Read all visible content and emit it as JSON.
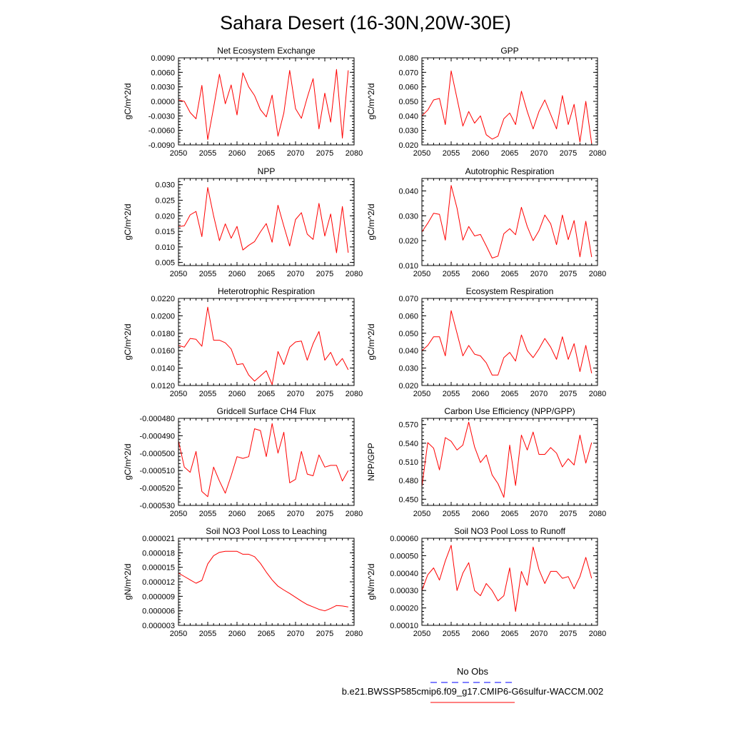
{
  "page": {
    "title": "Sahara Desert (16-30N,20W-30E)"
  },
  "legend": {
    "entries": [
      {
        "label": "No Obs",
        "color": "#0000ff",
        "style": "dashed"
      },
      {
        "label": "b.e21.BWSSP585cmip6.f09_g17.CMIP6-G6sulfur-WACCM.002",
        "color": "#ff0000",
        "style": "solid"
      }
    ]
  },
  "colors": {
    "series": "#ff0000",
    "axis": "#000000"
  },
  "chart_data": [
    {
      "type": "line",
      "title": "Net Ecosystem Exchange",
      "ylabel": "gC/m^2/d",
      "xlim": [
        2050,
        2080
      ],
      "ylim": [
        -0.009,
        0.009
      ],
      "xticks": [
        "2050",
        "2055",
        "2060",
        "2065",
        "2070",
        "2075",
        "2080"
      ],
      "yticks": [
        "-0.0090",
        "-0.0060",
        "-0.0030",
        "0.0000",
        "0.0030",
        "0.0060",
        "0.0090"
      ],
      "x": [
        2050,
        2051,
        2052,
        2053,
        2054,
        2055,
        2056,
        2057,
        2058,
        2059,
        2060,
        2061,
        2062,
        2063,
        2064,
        2065,
        2066,
        2067,
        2068,
        2069,
        2070,
        2071,
        2072,
        2073,
        2074,
        2075,
        2076,
        2077,
        2078,
        2079
      ],
      "values": [
        0.0003,
        0.0,
        -0.0023,
        -0.0036,
        0.0033,
        -0.0079,
        -0.0013,
        0.0056,
        -0.0005,
        0.0034,
        -0.0028,
        0.0059,
        0.003,
        0.0012,
        -0.0017,
        -0.0032,
        0.0013,
        -0.0072,
        -0.0024,
        0.0064,
        -0.0015,
        -0.0035,
        0.0008,
        0.0047,
        -0.0057,
        0.0017,
        -0.0043,
        0.0066,
        -0.0076,
        0.0064
      ]
    },
    {
      "type": "line",
      "title": "GPP",
      "ylabel": "gC/m^2/d",
      "xlim": [
        2050,
        2080
      ],
      "ylim": [
        0.02,
        0.08
      ],
      "xticks": [
        "2050",
        "2055",
        "2060",
        "2065",
        "2070",
        "2075",
        "2080"
      ],
      "yticks": [
        "0.020",
        "0.030",
        "0.040",
        "0.050",
        "0.060",
        "0.070",
        "0.080"
      ],
      "x": [
        2050,
        2051,
        2052,
        2053,
        2054,
        2055,
        2056,
        2057,
        2058,
        2059,
        2060,
        2061,
        2062,
        2063,
        2064,
        2065,
        2066,
        2067,
        2068,
        2069,
        2070,
        2071,
        2072,
        2073,
        2074,
        2075,
        2076,
        2077,
        2078,
        2079
      ],
      "values": [
        0.04,
        0.044,
        0.051,
        0.052,
        0.034,
        0.071,
        0.052,
        0.033,
        0.043,
        0.035,
        0.04,
        0.027,
        0.024,
        0.026,
        0.038,
        0.042,
        0.034,
        0.057,
        0.043,
        0.031,
        0.043,
        0.051,
        0.041,
        0.031,
        0.054,
        0.034,
        0.048,
        0.022,
        0.05,
        0.021
      ]
    },
    {
      "type": "line",
      "title": "NPP",
      "ylabel": "gC/m^2/d",
      "xlim": [
        2050,
        2080
      ],
      "ylim": [
        0.004,
        0.032
      ],
      "xticks": [
        "2050",
        "2055",
        "2060",
        "2065",
        "2070",
        "2075",
        "2080"
      ],
      "yticks": [
        "0.005",
        "0.010",
        "0.015",
        "0.020",
        "0.025",
        "0.030"
      ],
      "x": [
        2050,
        2051,
        2052,
        2053,
        2054,
        2055,
        2056,
        2057,
        2058,
        2059,
        2060,
        2061,
        2062,
        2063,
        2064,
        2065,
        2066,
        2067,
        2068,
        2069,
        2070,
        2071,
        2072,
        2073,
        2074,
        2075,
        2076,
        2077,
        2078,
        2079
      ],
      "values": [
        0.0165,
        0.0168,
        0.0203,
        0.0214,
        0.0133,
        0.0291,
        0.02,
        0.012,
        0.0174,
        0.0128,
        0.0166,
        0.009,
        0.0105,
        0.0117,
        0.0148,
        0.0175,
        0.0115,
        0.0234,
        0.0167,
        0.0103,
        0.0188,
        0.021,
        0.0141,
        0.0124,
        0.024,
        0.0135,
        0.0206,
        0.0081,
        0.023,
        0.0081
      ]
    },
    {
      "type": "line",
      "title": "Autotrophic Respiration",
      "ylabel": "gC/m^2/d",
      "xlim": [
        2050,
        2080
      ],
      "ylim": [
        0.01,
        0.045
      ],
      "xticks": [
        "2050",
        "2055",
        "2060",
        "2065",
        "2070",
        "2075",
        "2080"
      ],
      "yticks": [
        "0.010",
        "0.020",
        "0.030",
        "0.040"
      ],
      "x": [
        2050,
        2051,
        2052,
        2053,
        2054,
        2055,
        2056,
        2057,
        2058,
        2059,
        2060,
        2061,
        2062,
        2063,
        2064,
        2065,
        2066,
        2067,
        2068,
        2069,
        2070,
        2071,
        2072,
        2073,
        2074,
        2075,
        2076,
        2077,
        2078,
        2079
      ],
      "values": [
        0.0235,
        0.027,
        0.031,
        0.0306,
        0.0202,
        0.0422,
        0.0331,
        0.0202,
        0.0257,
        0.0219,
        0.0225,
        0.0179,
        0.013,
        0.0138,
        0.0228,
        0.0248,
        0.0224,
        0.0334,
        0.0257,
        0.02,
        0.024,
        0.0303,
        0.0268,
        0.0184,
        0.0303,
        0.0204,
        0.0281,
        0.0135,
        0.0278,
        0.0134
      ]
    },
    {
      "type": "line",
      "title": "Heterotrophic Respiration",
      "ylabel": "gC/m^2/d",
      "xlim": [
        2050,
        2080
      ],
      "ylim": [
        0.012,
        0.022
      ],
      "xticks": [
        "2050",
        "2055",
        "2060",
        "2065",
        "2070",
        "2075",
        "2080"
      ],
      "yticks": [
        "0.0120",
        "0.0140",
        "0.0160",
        "0.0180",
        "0.0200",
        "0.0220"
      ],
      "x": [
        2050,
        2051,
        2052,
        2053,
        2054,
        2055,
        2056,
        2057,
        2058,
        2059,
        2060,
        2061,
        2062,
        2063,
        2064,
        2065,
        2066,
        2067,
        2068,
        2069,
        2070,
        2071,
        2072,
        2073,
        2074,
        2075,
        2076,
        2077,
        2078,
        2079
      ],
      "values": [
        0.0166,
        0.0164,
        0.0174,
        0.0173,
        0.0165,
        0.021,
        0.0172,
        0.0172,
        0.0169,
        0.0162,
        0.0144,
        0.0145,
        0.0132,
        0.0125,
        0.0131,
        0.0137,
        0.0121,
        0.0159,
        0.0144,
        0.0164,
        0.017,
        0.0171,
        0.0149,
        0.0168,
        0.0182,
        0.0149,
        0.0158,
        0.0143,
        0.0151,
        0.0138
      ]
    },
    {
      "type": "line",
      "title": "Ecosystem Respiration",
      "ylabel": "gC/m^2/d",
      "xlim": [
        2050,
        2080
      ],
      "ylim": [
        0.02,
        0.07
      ],
      "xticks": [
        "2050",
        "2055",
        "2060",
        "2065",
        "2070",
        "2075",
        "2080"
      ],
      "yticks": [
        "0.020",
        "0.030",
        "0.040",
        "0.050",
        "0.060",
        "0.070"
      ],
      "x": [
        2050,
        2051,
        2052,
        2053,
        2054,
        2055,
        2056,
        2057,
        2058,
        2059,
        2060,
        2061,
        2062,
        2063,
        2064,
        2065,
        2066,
        2067,
        2068,
        2069,
        2070,
        2071,
        2072,
        2073,
        2074,
        2075,
        2076,
        2077,
        2078,
        2079
      ],
      "values": [
        0.04,
        0.043,
        0.048,
        0.048,
        0.037,
        0.063,
        0.05,
        0.037,
        0.043,
        0.038,
        0.037,
        0.033,
        0.026,
        0.026,
        0.036,
        0.039,
        0.034,
        0.049,
        0.04,
        0.036,
        0.041,
        0.047,
        0.042,
        0.035,
        0.048,
        0.035,
        0.044,
        0.028,
        0.043,
        0.027
      ]
    },
    {
      "type": "line",
      "title": "Gridcell Surface CH4 Flux",
      "ylabel": "gC/m^2/d",
      "xlim": [
        2050,
        2080
      ],
      "ylim": [
        -0.00053,
        -0.00048
      ],
      "xticks": [
        "2050",
        "2055",
        "2060",
        "2065",
        "2070",
        "2075",
        "2080"
      ],
      "yticks": [
        "-0.000530",
        "-0.000520",
        "-0.000510",
        "-0.000500",
        "-0.000490",
        "-0.000480"
      ],
      "x": [
        2050,
        2051,
        2052,
        2053,
        2054,
        2055,
        2056,
        2057,
        2058,
        2059,
        2060,
        2061,
        2062,
        2063,
        2064,
        2065,
        2066,
        2067,
        2068,
        2069,
        2070,
        2071,
        2072,
        2073,
        2074,
        2075,
        2076,
        2077,
        2078,
        2079
      ],
      "values": [
        -0.000493,
        -0.000508,
        -0.000511,
        -0.000499,
        -0.000522,
        -0.000525,
        -0.000508,
        -0.000516,
        -0.000523,
        -0.000513,
        -0.000502,
        -0.000503,
        -0.000502,
        -0.000486,
        -0.000487,
        -0.000502,
        -0.000483,
        -0.0005,
        -0.000488,
        -0.000517,
        -0.000515,
        -0.000499,
        -0.000512,
        -0.000513,
        -0.000501,
        -0.000508,
        -0.000507,
        -0.000507,
        -0.000516,
        -0.00051
      ]
    },
    {
      "type": "line",
      "title": "Carbon Use Efficiency (NPP/GPP)",
      "ylabel": "NPP/GPP",
      "xlim": [
        2050,
        2080
      ],
      "ylim": [
        0.44,
        0.58
      ],
      "xticks": [
        "2050",
        "2055",
        "2060",
        "2065",
        "2070",
        "2075",
        "2080"
      ],
      "yticks": [
        "0.450",
        "0.480",
        "0.510",
        "0.540",
        "0.570"
      ],
      "x": [
        2050,
        2051,
        2052,
        2053,
        2054,
        2055,
        2056,
        2057,
        2058,
        2059,
        2060,
        2061,
        2062,
        2063,
        2064,
        2065,
        2066,
        2067,
        2068,
        2069,
        2070,
        2071,
        2072,
        2073,
        2074,
        2075,
        2076,
        2077,
        2078,
        2079
      ],
      "values": [
        0.47,
        0.541,
        0.532,
        0.497,
        0.549,
        0.543,
        0.529,
        0.537,
        0.574,
        0.534,
        0.509,
        0.521,
        0.489,
        0.475,
        0.453,
        0.537,
        0.472,
        0.553,
        0.529,
        0.558,
        0.522,
        0.522,
        0.533,
        0.524,
        0.502,
        0.515,
        0.505,
        0.553,
        0.508,
        0.541
      ]
    },
    {
      "type": "line",
      "title": "Soil NO3 Pool Loss to Leaching",
      "ylabel": "gN/m^2/d",
      "xlim": [
        2050,
        2080
      ],
      "ylim": [
        3e-06,
        2.1e-05
      ],
      "xticks": [
        "2050",
        "2055",
        "2060",
        "2065",
        "2070",
        "2075",
        "2080"
      ],
      "yticks": [
        "0.000003",
        "0.000006",
        "0.000009",
        "0.000012",
        "0.000015",
        "0.000018",
        "0.000021"
      ],
      "x": [
        2050,
        2051,
        2052,
        2053,
        2054,
        2055,
        2056,
        2057,
        2058,
        2059,
        2060,
        2061,
        2062,
        2063,
        2064,
        2065,
        2066,
        2067,
        2068,
        2069,
        2070,
        2071,
        2072,
        2073,
        2074,
        2075,
        2076,
        2077,
        2078,
        2079
      ],
      "values": [
        1.38e-05,
        1.31e-05,
        1.24e-05,
        1.17e-05,
        1.23e-05,
        1.57e-05,
        1.74e-05,
        1.81e-05,
        1.83e-05,
        1.83e-05,
        1.83e-05,
        1.77e-05,
        1.77e-05,
        1.72e-05,
        1.58e-05,
        1.4e-05,
        1.24e-05,
        1.11e-05,
        1.03e-05,
        9.6e-06,
        8.8e-06,
        8e-06,
        7.3e-06,
        6.8e-06,
        6.3e-06,
        6e-06,
        6.5e-06,
        7.1e-06,
        7e-06,
        6.8e-06
      ]
    },
    {
      "type": "line",
      "title": "Soil NO3 Pool Loss to Runoff",
      "ylabel": "gN/m^2/d",
      "xlim": [
        2050,
        2080
      ],
      "ylim": [
        0.0001,
        0.0006
      ],
      "xticks": [
        "2050",
        "2055",
        "2060",
        "2065",
        "2070",
        "2075",
        "2080"
      ],
      "yticks": [
        "0.00010",
        "0.00020",
        "0.00030",
        "0.00040",
        "0.00050",
        "0.00060"
      ],
      "x": [
        2050,
        2051,
        2052,
        2053,
        2054,
        2055,
        2056,
        2057,
        2058,
        2059,
        2060,
        2061,
        2062,
        2063,
        2064,
        2065,
        2066,
        2067,
        2068,
        2069,
        2070,
        2071,
        2072,
        2073,
        2074,
        2075,
        2076,
        2077,
        2078,
        2079
      ],
      "values": [
        0.0003,
        0.00039,
        0.00043,
        0.00036,
        0.00047,
        0.00056,
        0.0003,
        0.0004,
        0.00046,
        0.0003,
        0.00027,
        0.00034,
        0.0003,
        0.00024,
        0.00027,
        0.00043,
        0.00018,
        0.00041,
        0.00033,
        0.00055,
        0.00042,
        0.00034,
        0.00041,
        0.00041,
        0.00037,
        0.00038,
        0.00031,
        0.00038,
        0.00049,
        0.00037
      ]
    }
  ]
}
